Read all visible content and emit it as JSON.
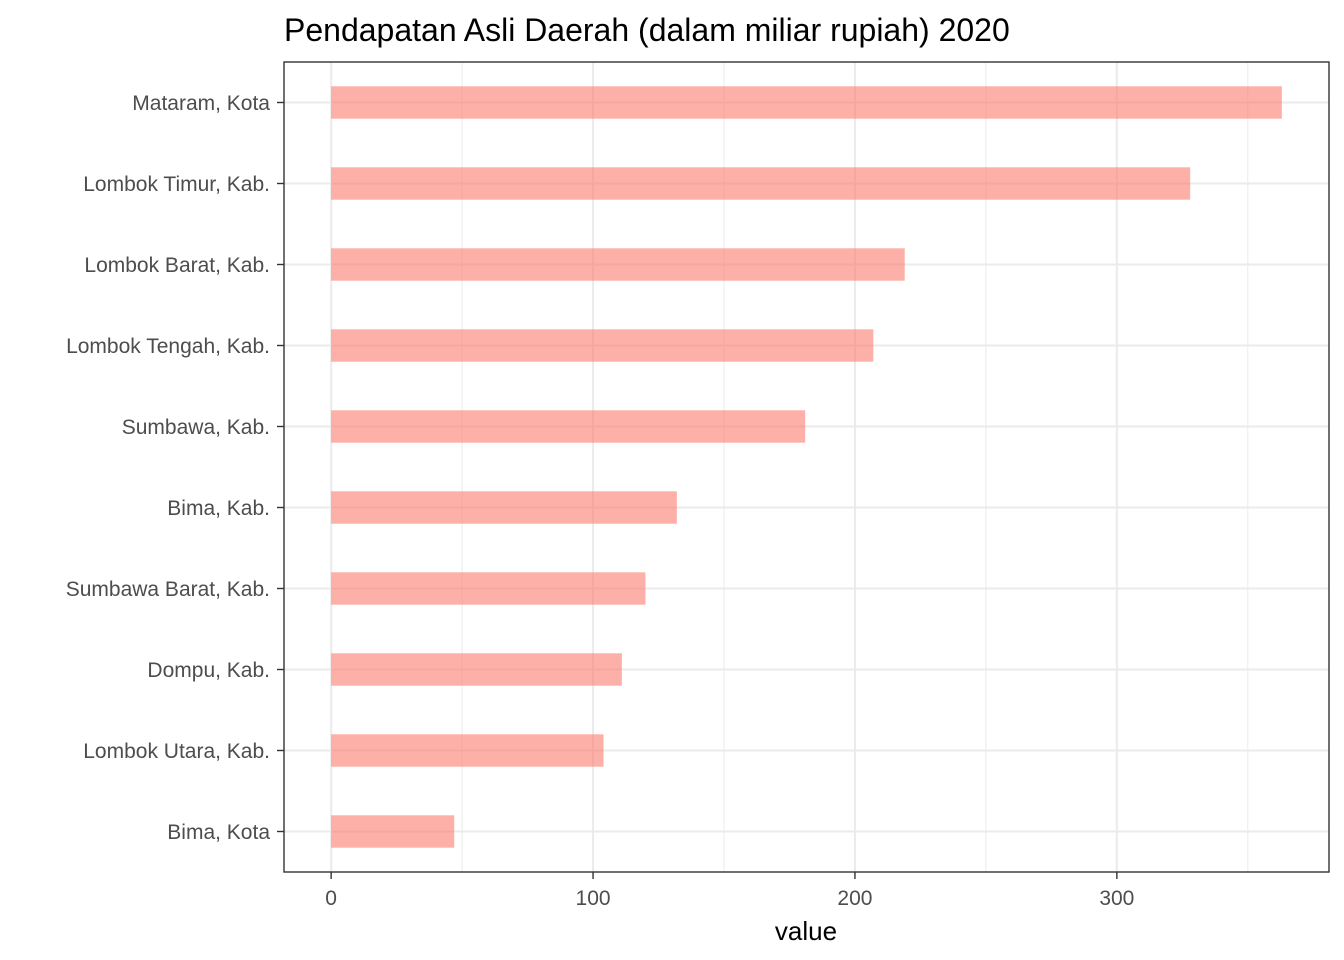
{
  "chart_data": {
    "type": "bar",
    "orientation": "horizontal",
    "title": "Pendapatan Asli Daerah (dalam miliar rupiah) 2020",
    "xlabel": "value",
    "ylabel": "",
    "categories": [
      "Mataram, Kota",
      "Lombok Timur, Kab.",
      "Lombok Barat, Kab.",
      "Lombok Tengah, Kab.",
      "Sumbawa, Kab.",
      "Bima, Kab.",
      "Sumbawa Barat, Kab.",
      "Dompu, Kab.",
      "Lombok Utara, Kab.",
      "Bima, Kota"
    ],
    "values": [
      363,
      328,
      219,
      207,
      181,
      132,
      120,
      111,
      104,
      47
    ],
    "xlim": [
      -18,
      381
    ],
    "xticks": [
      0,
      100,
      200,
      300
    ],
    "xtick_labels": [
      "0",
      "100",
      "200",
      "300"
    ],
    "grid": true,
    "legend": "none",
    "bar_color": "#fa8072"
  }
}
